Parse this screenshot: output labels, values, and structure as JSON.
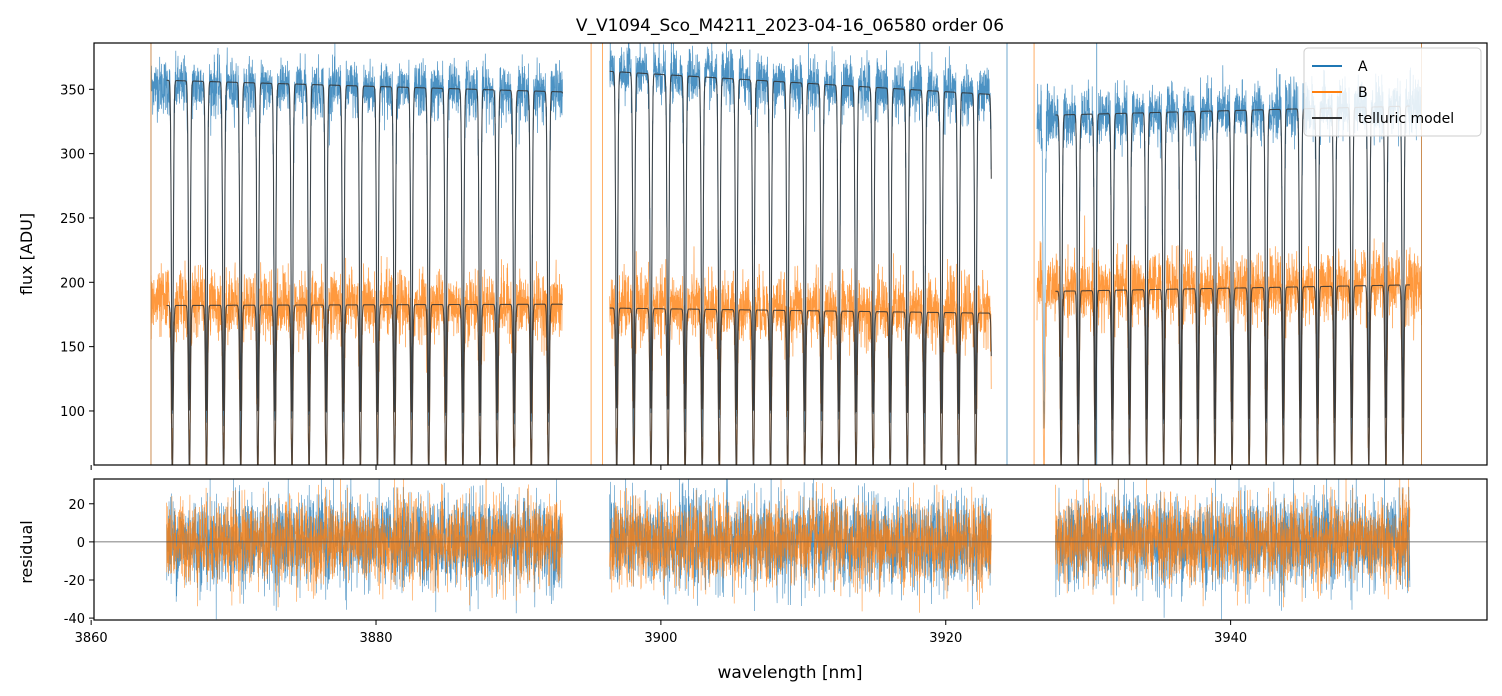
{
  "chart_data": [
    {
      "type": "line",
      "title": "V_V1094_Sco_M4211_2023-04-16_06580  order 06",
      "xlabel": "",
      "ylabel": "flux [ADU]",
      "xlim": [
        3860.2,
        3958.0
      ],
      "ylim": [
        58,
        386
      ],
      "yticks": [
        100,
        150,
        200,
        250,
        300,
        350
      ],
      "xticks": [
        3860,
        3880,
        3900,
        3920,
        3940
      ],
      "gaps": [
        [
          3893.1,
          3896.4
        ],
        [
          3923.2,
          3926.4
        ]
      ],
      "colors": {
        "A": "#1f77b4",
        "B": "#ff7f0e",
        "model": "#333333"
      },
      "legend": {
        "location": "upper right",
        "entries": [
          {
            "label": "A",
            "color": "#1f77b4"
          },
          {
            "label": "B",
            "color": "#ff7f0e"
          },
          {
            "label": "telluric model",
            "color": "#333333"
          }
        ]
      },
      "series": [
        {
          "name": "A",
          "x_range": [
            3864.2,
            3953.4
          ],
          "continuum_segments": [
            {
              "x": [
                3864.2,
                3893.1
              ],
              "y": [
                353,
                348
              ]
            },
            {
              "x": [
                3896.4,
                3923.2
              ],
              "y": [
                365,
                345
              ]
            },
            {
              "x": [
                3926.4,
                3953.4
              ],
              "y": [
                328,
                337
              ]
            }
          ],
          "noise_amplitude": 11
        },
        {
          "name": "B",
          "x_range": [
            3864.2,
            3953.4
          ],
          "continuum_segments": [
            {
              "x": [
                3864.2,
                3893.1
              ],
              "y": [
                185,
                182
              ]
            },
            {
              "x": [
                3896.4,
                3923.2
              ],
              "y": [
                182,
                179
              ]
            },
            {
              "x": [
                3926.4,
                3953.4
              ],
              "y": [
                196,
                198
              ]
            }
          ],
          "noise_amplitude": 13
        },
        {
          "name": "telluric model",
          "x_range": [
            3865.3,
            3952.6
          ],
          "continuum_segments": [
            {
              "x": [
                3865.3,
                3893.1
              ],
              "y": [
                357,
                348
              ]
            },
            {
              "x": [
                3896.4,
                3923.2
              ],
              "y": [
                364,
                346
              ]
            },
            {
              "x": [
                3927.7,
                3952.6
              ],
              "y": [
                330,
                337
              ]
            }
          ],
          "continuum_segments_B": [
            {
              "x": [
                3865.3,
                3893.1
              ],
              "y": [
                182,
                183
              ]
            },
            {
              "x": [
                3896.4,
                3923.2
              ],
              "y": [
                180,
                176
              ]
            },
            {
              "x": [
                3927.7,
                3952.6
              ],
              "y": [
                193,
                198
              ]
            }
          ],
          "absorption_line_spacing_nm": 1.2,
          "absorption_depth_fraction": 0.72
        }
      ]
    },
    {
      "type": "line",
      "title": "",
      "xlabel": "wavelength [nm]",
      "ylabel": "residual",
      "xlim": [
        3860.2,
        3958.0
      ],
      "ylim": [
        -41,
        33
      ],
      "yticks": [
        -40,
        -20,
        0,
        20
      ],
      "xticks": [
        3860,
        3880,
        3900,
        3920,
        3940
      ],
      "zero_line": 0,
      "segments": [
        [
          3865.3,
          3893.1
        ],
        [
          3896.4,
          3923.2
        ],
        [
          3927.7,
          3952.6
        ]
      ],
      "series": [
        {
          "name": "A",
          "mean": 0,
          "std": 12
        },
        {
          "name": "B",
          "mean": 0,
          "std": 11
        }
      ]
    }
  ]
}
